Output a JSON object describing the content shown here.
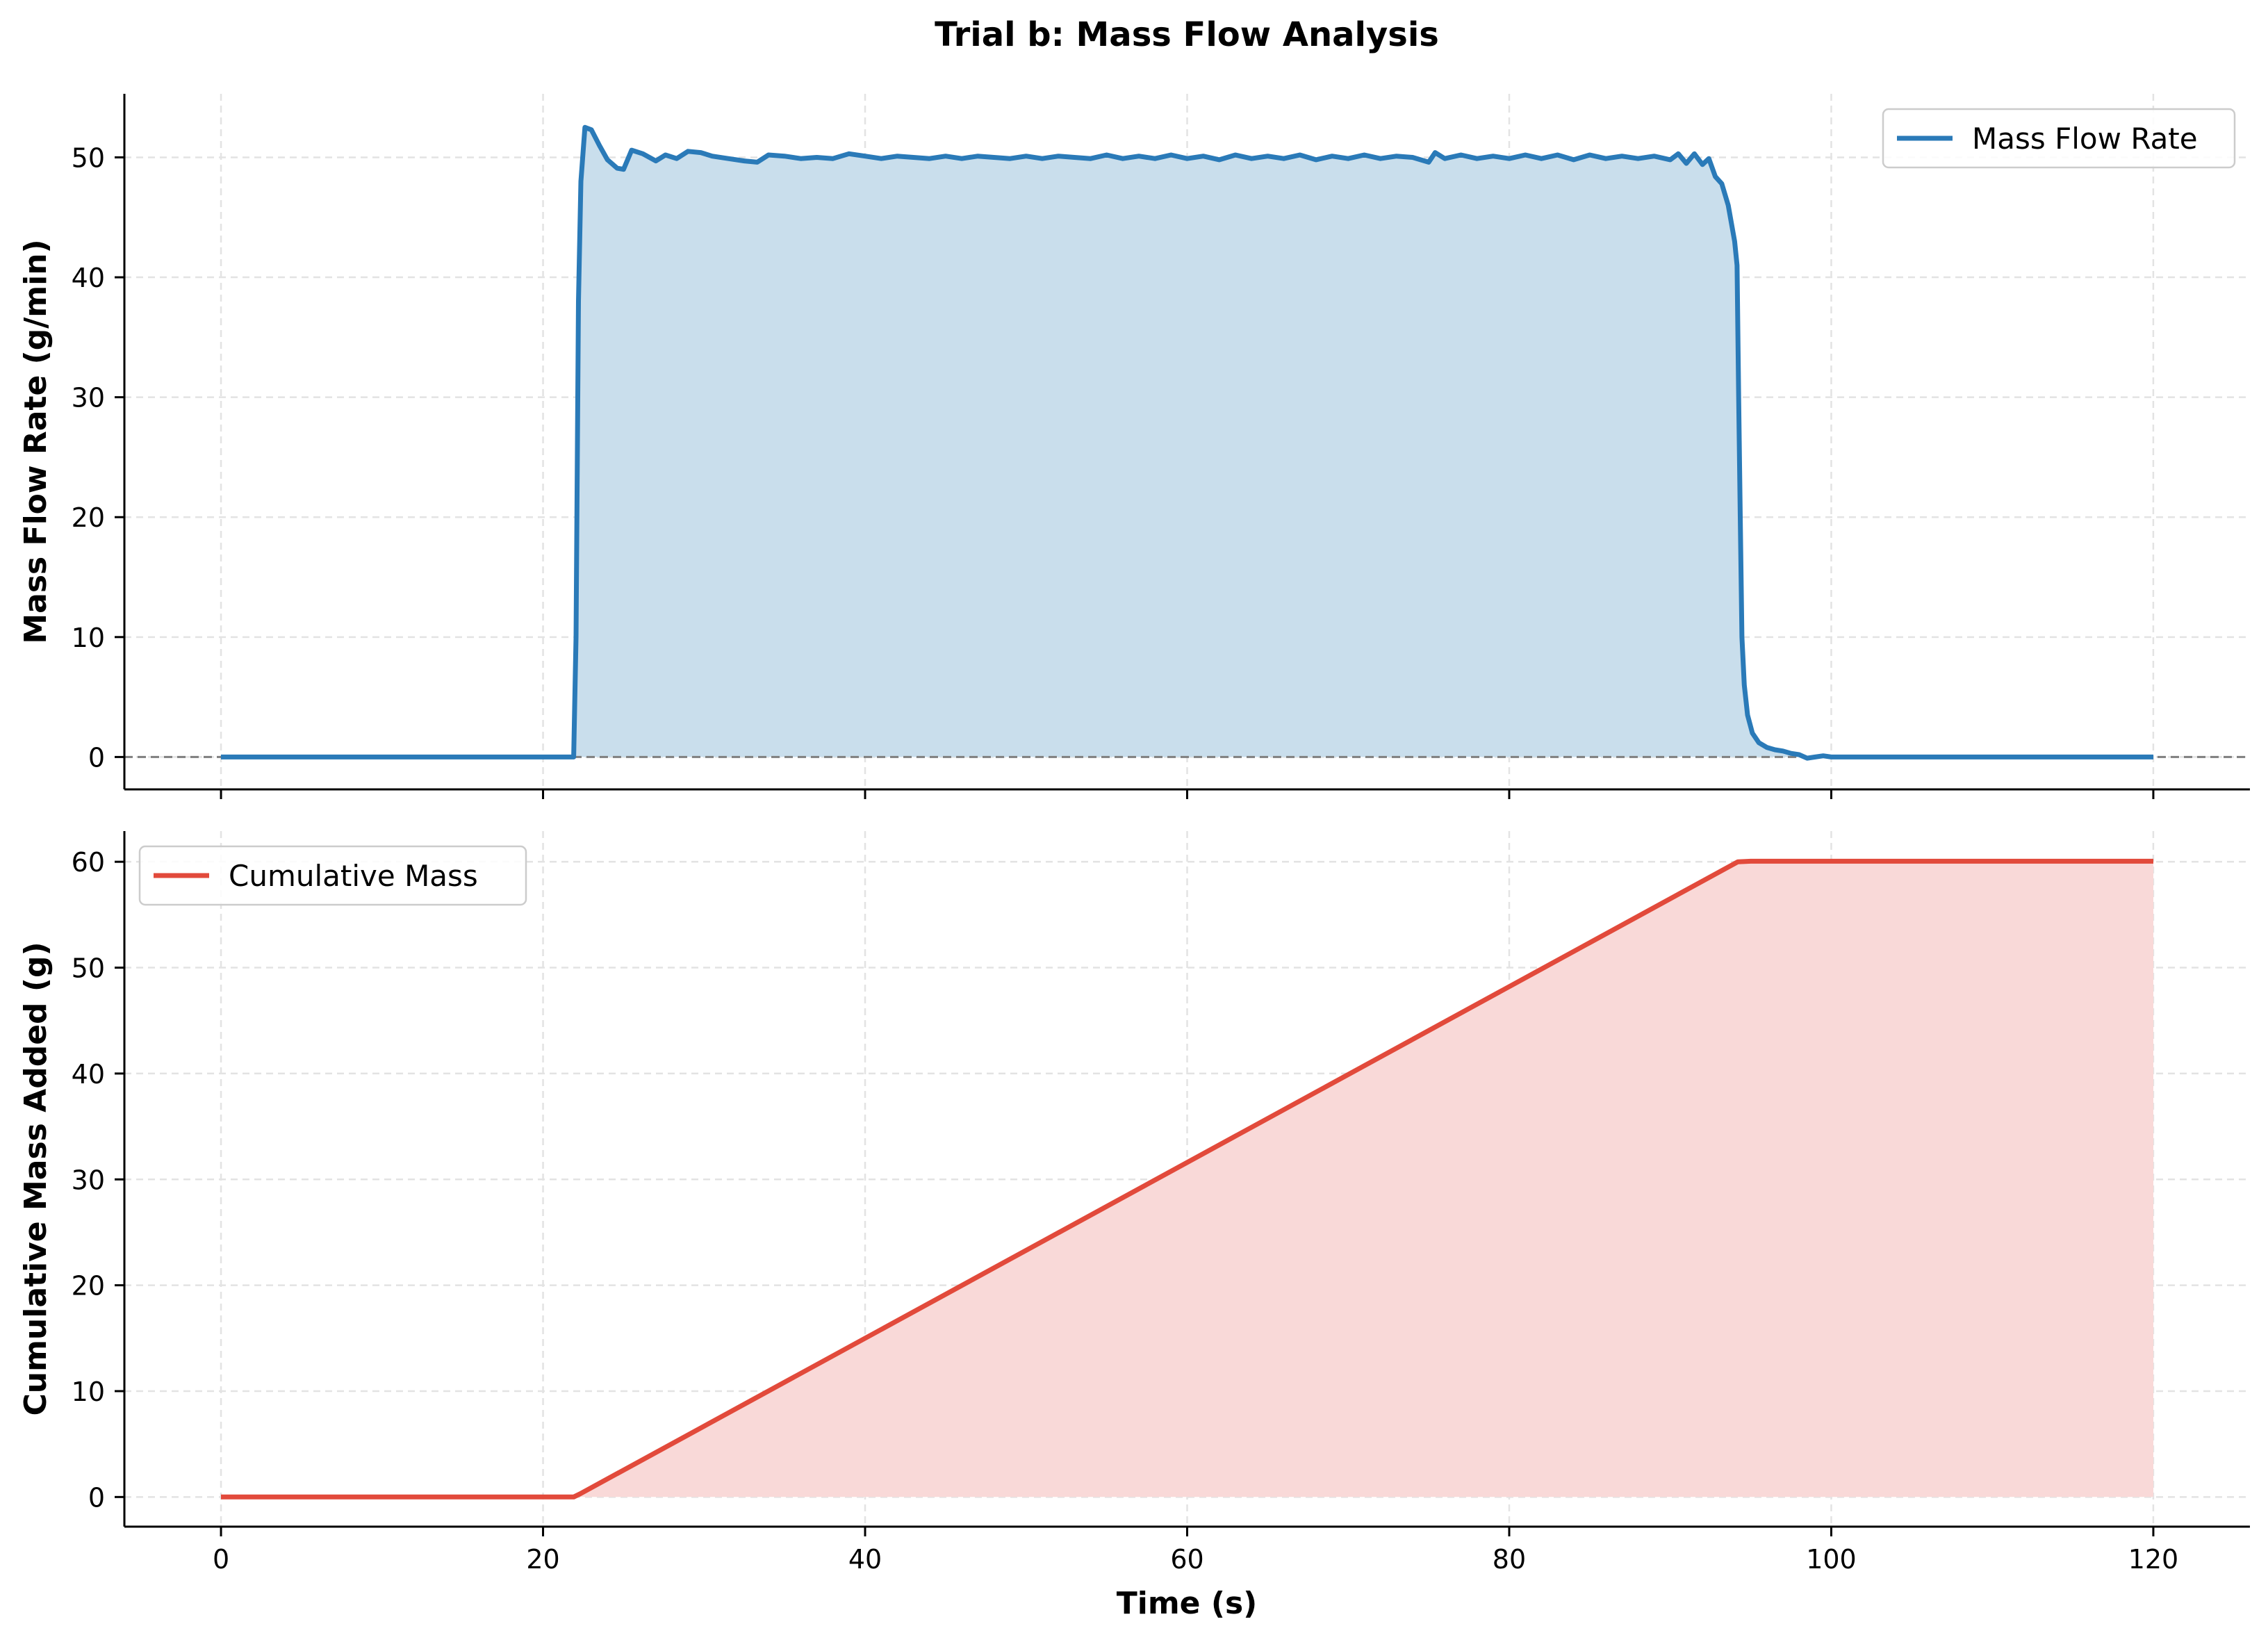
{
  "figure": {
    "title": "Trial b: Mass Flow Analysis",
    "xlabel": "Time (s)"
  },
  "colors": {
    "flow": "#2a7ab8",
    "flow_fill": "#c9deec",
    "mass": "#e24a3b",
    "mass_fill": "#f9d9d8",
    "grid": "#e3e3e3",
    "zero_line": "#7f7f7f",
    "axis": "#000000"
  },
  "chart_data": [
    {
      "type": "area",
      "ylabel": "Mass Flow Rate (g/min)",
      "xlim": [
        -6,
        126
      ],
      "ylim": [
        -2.7,
        55.3
      ],
      "xticks": [
        0,
        20,
        40,
        60,
        80,
        100,
        120
      ],
      "xtick_labels": [
        "",
        "",
        "",
        "",
        "",
        "",
        ""
      ],
      "yticks": [
        0,
        10,
        20,
        30,
        40,
        50
      ],
      "ytick_labels": [
        "0",
        "10",
        "20",
        "30",
        "40",
        "50"
      ],
      "grid": true,
      "legend": "upper right",
      "zero_reference_line": 0,
      "series": [
        {
          "name": "Mass Flow Rate",
          "points": [
            [
              0,
              0
            ],
            [
              21.9,
              0
            ],
            [
              22.05,
              10
            ],
            [
              22.2,
              38
            ],
            [
              22.35,
              48
            ],
            [
              22.6,
              52.5
            ],
            [
              23,
              52.3
            ],
            [
              23.5,
              51
            ],
            [
              24,
              49.8
            ],
            [
              24.6,
              49.1
            ],
            [
              25,
              49
            ],
            [
              25.5,
              50.6
            ],
            [
              26.2,
              50.3
            ],
            [
              27,
              49.7
            ],
            [
              27.6,
              50.2
            ],
            [
              28.3,
              49.9
            ],
            [
              29,
              50.5
            ],
            [
              29.8,
              50.4
            ],
            [
              30.5,
              50.1
            ],
            [
              31.5,
              49.9
            ],
            [
              32.5,
              49.7
            ],
            [
              33.3,
              49.6
            ],
            [
              34,
              50.2
            ],
            [
              35,
              50.1
            ],
            [
              36,
              49.9
            ],
            [
              37,
              50
            ],
            [
              38,
              49.9
            ],
            [
              39,
              50.3
            ],
            [
              40,
              50.1
            ],
            [
              41,
              49.9
            ],
            [
              42,
              50.1
            ],
            [
              43,
              50
            ],
            [
              44,
              49.9
            ],
            [
              45,
              50.1
            ],
            [
              46,
              49.9
            ],
            [
              47,
              50.1
            ],
            [
              48,
              50
            ],
            [
              49,
              49.9
            ],
            [
              50,
              50.1
            ],
            [
              51,
              49.9
            ],
            [
              52,
              50.1
            ],
            [
              53,
              50
            ],
            [
              54,
              49.9
            ],
            [
              55,
              50.2
            ],
            [
              56,
              49.9
            ],
            [
              57,
              50.1
            ],
            [
              58,
              49.9
            ],
            [
              59,
              50.2
            ],
            [
              60,
              49.9
            ],
            [
              61,
              50.1
            ],
            [
              62,
              49.8
            ],
            [
              63,
              50.2
            ],
            [
              64,
              49.9
            ],
            [
              65,
              50.1
            ],
            [
              66,
              49.9
            ],
            [
              67,
              50.2
            ],
            [
              68,
              49.8
            ],
            [
              69,
              50.1
            ],
            [
              70,
              49.9
            ],
            [
              71,
              50.2
            ],
            [
              72,
              49.9
            ],
            [
              73,
              50.1
            ],
            [
              74,
              50
            ],
            [
              75,
              49.6
            ],
            [
              75.4,
              50.4
            ],
            [
              76,
              49.9
            ],
            [
              77,
              50.2
            ],
            [
              78,
              49.9
            ],
            [
              79,
              50.1
            ],
            [
              80,
              49.9
            ],
            [
              81,
              50.2
            ],
            [
              82,
              49.9
            ],
            [
              83,
              50.2
            ],
            [
              84,
              49.8
            ],
            [
              85,
              50.2
            ],
            [
              86,
              49.9
            ],
            [
              87,
              50.1
            ],
            [
              88,
              49.9
            ],
            [
              89,
              50.1
            ],
            [
              90,
              49.8
            ],
            [
              90.5,
              50.3
            ],
            [
              91,
              49.5
            ],
            [
              91.5,
              50.3
            ],
            [
              92,
              49.4
            ],
            [
              92.4,
              49.9
            ],
            [
              92.8,
              48.4
            ],
            [
              93.2,
              47.8
            ],
            [
              93.6,
              46
            ],
            [
              94,
              43
            ],
            [
              94.15,
              41
            ],
            [
              94.25,
              30
            ],
            [
              94.35,
              20
            ],
            [
              94.45,
              10
            ],
            [
              94.6,
              6
            ],
            [
              94.8,
              3.5
            ],
            [
              95.1,
              2
            ],
            [
              95.5,
              1.2
            ],
            [
              96,
              0.8
            ],
            [
              96.5,
              0.6
            ],
            [
              97,
              0.5
            ],
            [
              97.5,
              0.3
            ],
            [
              98,
              0.2
            ],
            [
              98.5,
              -0.1
            ],
            [
              99,
              0
            ],
            [
              99.5,
              0.1
            ],
            [
              100,
              0
            ],
            [
              120,
              0
            ]
          ]
        }
      ]
    },
    {
      "type": "area",
      "ylabel": "Cumulative Mass Added (g)",
      "xlim": [
        -6,
        126
      ],
      "ylim": [
        -2.8,
        62.9
      ],
      "xticks": [
        0,
        20,
        40,
        60,
        80,
        100,
        120
      ],
      "xtick_labels": [
        "0",
        "20",
        "40",
        "60",
        "80",
        "100",
        "120"
      ],
      "yticks": [
        0,
        10,
        20,
        30,
        40,
        50,
        60
      ],
      "ytick_labels": [
        "0",
        "10",
        "20",
        "30",
        "40",
        "50",
        "60"
      ],
      "grid": true,
      "legend": "upper left",
      "series": [
        {
          "name": "Cumulative Mass",
          "points": [
            [
              0,
              0
            ],
            [
              21.9,
              0
            ],
            [
              22.3,
              0.3
            ],
            [
              94.2,
              60
            ],
            [
              95,
              60.05
            ],
            [
              120,
              60.05
            ]
          ]
        }
      ]
    }
  ]
}
